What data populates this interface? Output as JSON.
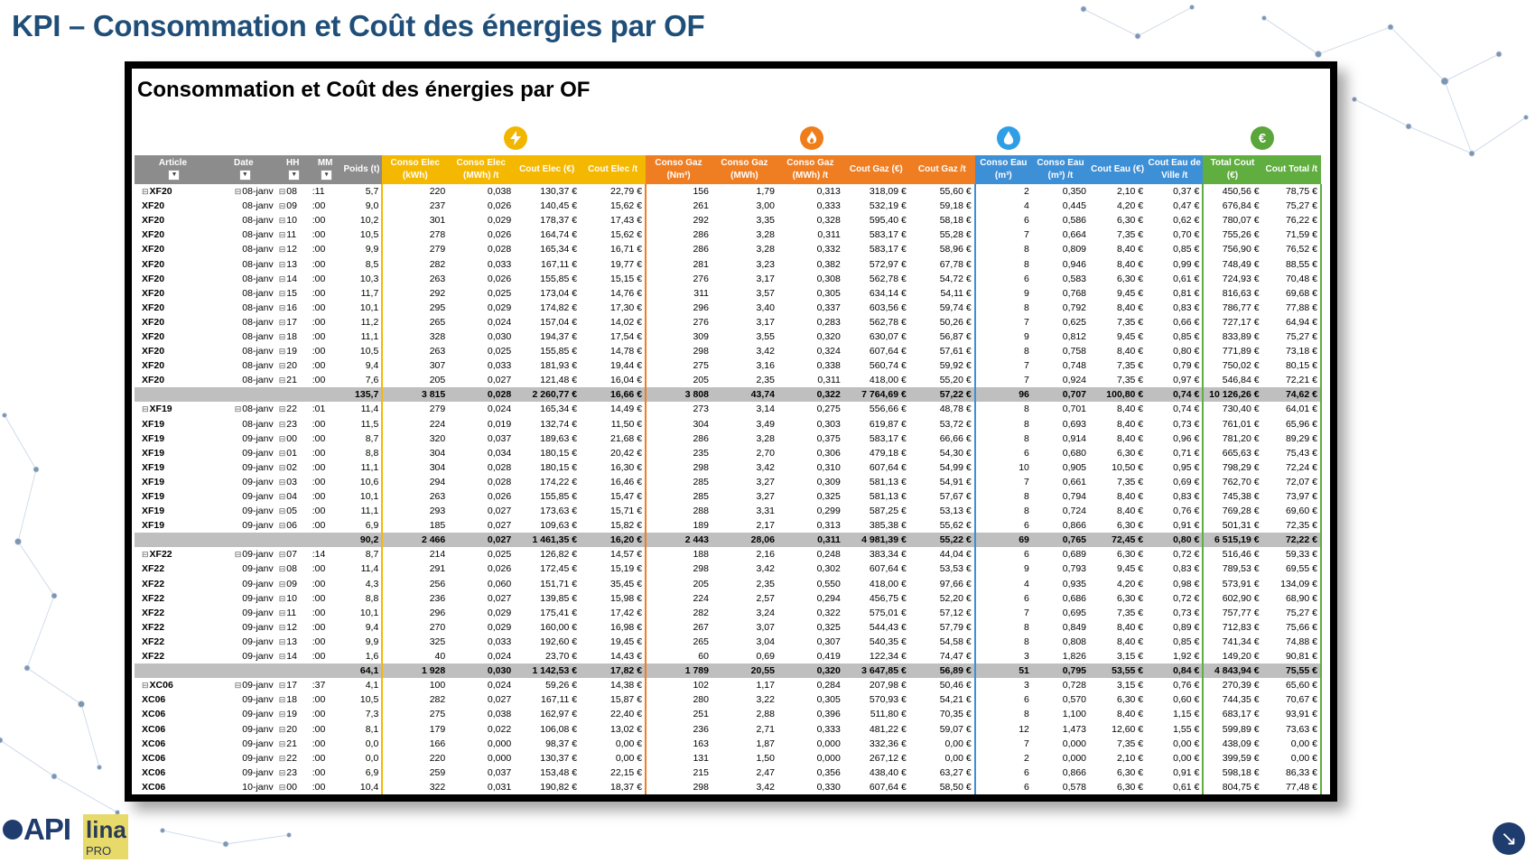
{
  "slide": {
    "title": "KPI – Consommation et Coût des énergies par OF"
  },
  "sheet": {
    "title": "Consommation et Coût des énergies par OF",
    "icons": [
      "lightning-icon",
      "flame-icon",
      "water-drop-icon",
      "euro-icon"
    ],
    "headers": {
      "article": "Article",
      "date": "Date",
      "hh": "HH",
      "mm": "MM",
      "poids": "Poids (t)",
      "conso_elec_kwh": "Conso Elec (kWh)",
      "conso_elec_mwh_t": "Conso Elec (MWh) /t",
      "cout_elec": "Cout Elec (€)",
      "cout_elec_t": "Cout Elec /t",
      "conso_gaz_nm3": "Conso Gaz (Nm³)",
      "conso_gaz_mwh": "Conso Gaz (MWh)",
      "conso_gaz_mwh_t": "Conso Gaz (MWh) /t",
      "cout_gaz": "Cout Gaz (€)",
      "cout_gaz_t": "Cout Gaz /t",
      "conso_eau_m3": "Conso Eau (m³)",
      "conso_eau_m3_t": "Conso Eau (m³) /t",
      "cout_eau": "Cout Eau (€)",
      "cout_eau_ville_t": "Cout Eau de Ville /t",
      "total_cout": "Total Cout (€)",
      "cout_total_t": "Cout Total /t"
    },
    "filter_glyphs": {
      "dropdown": "▼",
      "sorted": "▾"
    },
    "rows": [
      {
        "t": "first",
        "c": [
          "XF20",
          "08-janv",
          "08",
          ":11",
          "5,7",
          "220",
          "0,038",
          "130,37 €",
          "22,79 €",
          "156",
          "1,79",
          "0,313",
          "318,09 €",
          "55,60 €",
          "2",
          "0,350",
          "2,10 €",
          "0,37 €",
          "450,56 €",
          "78,75 €"
        ]
      },
      {
        "t": "row",
        "c": [
          "XF20",
          "08-janv",
          "09",
          ":00",
          "9,0",
          "237",
          "0,026",
          "140,45 €",
          "15,62 €",
          "261",
          "3,00",
          "0,333",
          "532,19 €",
          "59,18 €",
          "4",
          "0,445",
          "4,20 €",
          "0,47 €",
          "676,84 €",
          "75,27 €"
        ]
      },
      {
        "t": "row",
        "c": [
          "XF20",
          "08-janv",
          "10",
          ":00",
          "10,2",
          "301",
          "0,029",
          "178,37 €",
          "17,43 €",
          "292",
          "3,35",
          "0,328",
          "595,40 €",
          "58,18 €",
          "6",
          "0,586",
          "6,30 €",
          "0,62 €",
          "780,07 €",
          "76,22 €"
        ]
      },
      {
        "t": "row",
        "c": [
          "XF20",
          "08-janv",
          "11",
          ":00",
          "10,5",
          "278",
          "0,026",
          "164,74 €",
          "15,62 €",
          "286",
          "3,28",
          "0,311",
          "583,17 €",
          "55,28 €",
          "7",
          "0,664",
          "7,35 €",
          "0,70 €",
          "755,26 €",
          "71,59 €"
        ]
      },
      {
        "t": "row",
        "c": [
          "XF20",
          "08-janv",
          "12",
          ":00",
          "9,9",
          "279",
          "0,028",
          "165,34 €",
          "16,71 €",
          "286",
          "3,28",
          "0,332",
          "583,17 €",
          "58,96 €",
          "8",
          "0,809",
          "8,40 €",
          "0,85 €",
          "756,90 €",
          "76,52 €"
        ]
      },
      {
        "t": "row",
        "c": [
          "XF20",
          "08-janv",
          "13",
          ":00",
          "8,5",
          "282",
          "0,033",
          "167,11 €",
          "19,77 €",
          "281",
          "3,23",
          "0,382",
          "572,97 €",
          "67,78 €",
          "8",
          "0,946",
          "8,40 €",
          "0,99 €",
          "748,49 €",
          "88,55 €"
        ]
      },
      {
        "t": "row",
        "c": [
          "XF20",
          "08-janv",
          "14",
          ":00",
          "10,3",
          "263",
          "0,026",
          "155,85 €",
          "15,15 €",
          "276",
          "3,17",
          "0,308",
          "562,78 €",
          "54,72 €",
          "6",
          "0,583",
          "6,30 €",
          "0,61 €",
          "724,93 €",
          "70,48 €"
        ]
      },
      {
        "t": "row",
        "c": [
          "XF20",
          "08-janv",
          "15",
          ":00",
          "11,7",
          "292",
          "0,025",
          "173,04 €",
          "14,76 €",
          "311",
          "3,57",
          "0,305",
          "634,14 €",
          "54,11 €",
          "9",
          "0,768",
          "9,45 €",
          "0,81 €",
          "816,63 €",
          "69,68 €"
        ]
      },
      {
        "t": "row",
        "c": [
          "XF20",
          "08-janv",
          "16",
          ":00",
          "10,1",
          "295",
          "0,029",
          "174,82 €",
          "17,30 €",
          "296",
          "3,40",
          "0,337",
          "603,56 €",
          "59,74 €",
          "8",
          "0,792",
          "8,40 €",
          "0,83 €",
          "786,77 €",
          "77,88 €"
        ]
      },
      {
        "t": "row",
        "c": [
          "XF20",
          "08-janv",
          "17",
          ":00",
          "11,2",
          "265",
          "0,024",
          "157,04 €",
          "14,02 €",
          "276",
          "3,17",
          "0,283",
          "562,78 €",
          "50,26 €",
          "7",
          "0,625",
          "7,35 €",
          "0,66 €",
          "727,17 €",
          "64,94 €"
        ]
      },
      {
        "t": "row",
        "c": [
          "XF20",
          "08-janv",
          "18",
          ":00",
          "11,1",
          "328",
          "0,030",
          "194,37 €",
          "17,54 €",
          "309",
          "3,55",
          "0,320",
          "630,07 €",
          "56,87 €",
          "9",
          "0,812",
          "9,45 €",
          "0,85 €",
          "833,89 €",
          "75,27 €"
        ]
      },
      {
        "t": "row",
        "c": [
          "XF20",
          "08-janv",
          "19",
          ":00",
          "10,5",
          "263",
          "0,025",
          "155,85 €",
          "14,78 €",
          "298",
          "3,42",
          "0,324",
          "607,64 €",
          "57,61 €",
          "8",
          "0,758",
          "8,40 €",
          "0,80 €",
          "771,89 €",
          "73,18 €"
        ]
      },
      {
        "t": "row",
        "c": [
          "XF20",
          "08-janv",
          "20",
          ":00",
          "9,4",
          "307",
          "0,033",
          "181,93 €",
          "19,44 €",
          "275",
          "3,16",
          "0,338",
          "560,74 €",
          "59,92 €",
          "7",
          "0,748",
          "7,35 €",
          "0,79 €",
          "750,02 €",
          "80,15 €"
        ]
      },
      {
        "t": "row",
        "c": [
          "XF20",
          "08-janv",
          "21",
          ":00",
          "7,6",
          "205",
          "0,027",
          "121,48 €",
          "16,04 €",
          "205",
          "2,35",
          "0,311",
          "418,00 €",
          "55,20 €",
          "7",
          "0,924",
          "7,35 €",
          "0,97 €",
          "546,84 €",
          "72,21 €"
        ]
      },
      {
        "t": "subtotal",
        "c": [
          "",
          "",
          "",
          "",
          "135,7",
          "3 815",
          "0,028",
          "2 260,77 €",
          "16,66 €",
          "3 808",
          "43,74",
          "0,322",
          "7 764,69 €",
          "57,22 €",
          "96",
          "0,707",
          "100,80 €",
          "0,74 €",
          "10 126,26 €",
          "74,62 €"
        ]
      },
      {
        "t": "first",
        "c": [
          "XF19",
          "08-janv",
          "22",
          ":01",
          "11,4",
          "279",
          "0,024",
          "165,34 €",
          "14,49 €",
          "273",
          "3,14",
          "0,275",
          "556,66 €",
          "48,78 €",
          "8",
          "0,701",
          "8,40 €",
          "0,74 €",
          "730,40 €",
          "64,01 €"
        ]
      },
      {
        "t": "row",
        "c": [
          "XF19",
          "08-janv",
          "23",
          ":00",
          "11,5",
          "224",
          "0,019",
          "132,74 €",
          "11,50 €",
          "304",
          "3,49",
          "0,303",
          "619,87 €",
          "53,72 €",
          "8",
          "0,693",
          "8,40 €",
          "0,73 €",
          "761,01 €",
          "65,96 €"
        ]
      },
      {
        "t": "rowd",
        "c": [
          "XF19",
          "09-janv",
          "00",
          ":00",
          "8,7",
          "320",
          "0,037",
          "189,63 €",
          "21,68 €",
          "286",
          "3,28",
          "0,375",
          "583,17 €",
          "66,66 €",
          "8",
          "0,914",
          "8,40 €",
          "0,96 €",
          "781,20 €",
          "89,29 €"
        ]
      },
      {
        "t": "row",
        "c": [
          "XF19",
          "09-janv",
          "01",
          ":00",
          "8,8",
          "304",
          "0,034",
          "180,15 €",
          "20,42 €",
          "235",
          "2,70",
          "0,306",
          "479,18 €",
          "54,30 €",
          "6",
          "0,680",
          "6,30 €",
          "0,71 €",
          "665,63 €",
          "75,43 €"
        ]
      },
      {
        "t": "row",
        "c": [
          "XF19",
          "09-janv",
          "02",
          ":00",
          "11,1",
          "304",
          "0,028",
          "180,15 €",
          "16,30 €",
          "298",
          "3,42",
          "0,310",
          "607,64 €",
          "54,99 €",
          "10",
          "0,905",
          "10,50 €",
          "0,95 €",
          "798,29 €",
          "72,24 €"
        ]
      },
      {
        "t": "row",
        "c": [
          "XF19",
          "09-janv",
          "03",
          ":00",
          "10,6",
          "294",
          "0,028",
          "174,22 €",
          "16,46 €",
          "285",
          "3,27",
          "0,309",
          "581,13 €",
          "54,91 €",
          "7",
          "0,661",
          "7,35 €",
          "0,69 €",
          "762,70 €",
          "72,07 €"
        ]
      },
      {
        "t": "row",
        "c": [
          "XF19",
          "09-janv",
          "04",
          ":00",
          "10,1",
          "263",
          "0,026",
          "155,85 €",
          "15,47 €",
          "285",
          "3,27",
          "0,325",
          "581,13 €",
          "57,67 €",
          "8",
          "0,794",
          "8,40 €",
          "0,83 €",
          "745,38 €",
          "73,97 €"
        ]
      },
      {
        "t": "row",
        "c": [
          "XF19",
          "09-janv",
          "05",
          ":00",
          "11,1",
          "293",
          "0,027",
          "173,63 €",
          "15,71 €",
          "288",
          "3,31",
          "0,299",
          "587,25 €",
          "53,13 €",
          "8",
          "0,724",
          "8,40 €",
          "0,76 €",
          "769,28 €",
          "69,60 €"
        ]
      },
      {
        "t": "row",
        "c": [
          "XF19",
          "09-janv",
          "06",
          ":00",
          "6,9",
          "185",
          "0,027",
          "109,63 €",
          "15,82 €",
          "189",
          "2,17",
          "0,313",
          "385,38 €",
          "55,62 €",
          "6",
          "0,866",
          "6,30 €",
          "0,91 €",
          "501,31 €",
          "72,35 €"
        ]
      },
      {
        "t": "subtotal",
        "c": [
          "",
          "",
          "",
          "",
          "90,2",
          "2 466",
          "0,027",
          "1 461,35 €",
          "16,20 €",
          "2 443",
          "28,06",
          "0,311",
          "4 981,39 €",
          "55,22 €",
          "69",
          "0,765",
          "72,45 €",
          "0,80 €",
          "6 515,19 €",
          "72,22 €"
        ]
      },
      {
        "t": "first",
        "c": [
          "XF22",
          "09-janv",
          "07",
          ":14",
          "8,7",
          "214",
          "0,025",
          "126,82 €",
          "14,57 €",
          "188",
          "2,16",
          "0,248",
          "383,34 €",
          "44,04 €",
          "6",
          "0,689",
          "6,30 €",
          "0,72 €",
          "516,46 €",
          "59,33 €"
        ]
      },
      {
        "t": "row",
        "c": [
          "XF22",
          "09-janv",
          "08",
          ":00",
          "11,4",
          "291",
          "0,026",
          "172,45 €",
          "15,19 €",
          "298",
          "3,42",
          "0,302",
          "607,64 €",
          "53,53 €",
          "9",
          "0,793",
          "9,45 €",
          "0,83 €",
          "789,53 €",
          "69,55 €"
        ]
      },
      {
        "t": "row",
        "c": [
          "XF22",
          "09-janv",
          "09",
          ":00",
          "4,3",
          "256",
          "0,060",
          "151,71 €",
          "35,45 €",
          "205",
          "2,35",
          "0,550",
          "418,00 €",
          "97,66 €",
          "4",
          "0,935",
          "4,20 €",
          "0,98 €",
          "573,91 €",
          "134,09 €"
        ]
      },
      {
        "t": "row",
        "c": [
          "XF22",
          "09-janv",
          "10",
          ":00",
          "8,8",
          "236",
          "0,027",
          "139,85 €",
          "15,98 €",
          "224",
          "2,57",
          "0,294",
          "456,75 €",
          "52,20 €",
          "6",
          "0,686",
          "6,30 €",
          "0,72 €",
          "602,90 €",
          "68,90 €"
        ]
      },
      {
        "t": "row",
        "c": [
          "XF22",
          "09-janv",
          "11",
          ":00",
          "10,1",
          "296",
          "0,029",
          "175,41 €",
          "17,42 €",
          "282",
          "3,24",
          "0,322",
          "575,01 €",
          "57,12 €",
          "7",
          "0,695",
          "7,35 €",
          "0,73 €",
          "757,77 €",
          "75,27 €"
        ]
      },
      {
        "t": "row",
        "c": [
          "XF22",
          "09-janv",
          "12",
          ":00",
          "9,4",
          "270",
          "0,029",
          "160,00 €",
          "16,98 €",
          "267",
          "3,07",
          "0,325",
          "544,43 €",
          "57,79 €",
          "8",
          "0,849",
          "8,40 €",
          "0,89 €",
          "712,83 €",
          "75,66 €"
        ]
      },
      {
        "t": "row",
        "c": [
          "XF22",
          "09-janv",
          "13",
          ":00",
          "9,9",
          "325",
          "0,033",
          "192,60 €",
          "19,45 €",
          "265",
          "3,04",
          "0,307",
          "540,35 €",
          "54,58 €",
          "8",
          "0,808",
          "8,40 €",
          "0,85 €",
          "741,34 €",
          "74,88 €"
        ]
      },
      {
        "t": "row",
        "c": [
          "XF22",
          "09-janv",
          "14",
          ":00",
          "1,6",
          "40",
          "0,024",
          "23,70 €",
          "14,43 €",
          "60",
          "0,69",
          "0,419",
          "122,34 €",
          "74,47 €",
          "3",
          "1,826",
          "3,15 €",
          "1,92 €",
          "149,20 €",
          "90,81 €"
        ]
      },
      {
        "t": "subtotal",
        "c": [
          "",
          "",
          "",
          "",
          "64,1",
          "1 928",
          "0,030",
          "1 142,53 €",
          "17,82 €",
          "1 789",
          "20,55",
          "0,320",
          "3 647,85 €",
          "56,89 €",
          "51",
          "0,795",
          "53,55 €",
          "0,84 €",
          "4 843,94 €",
          "75,55 €"
        ]
      },
      {
        "t": "first",
        "c": [
          "XC06",
          "09-janv",
          "17",
          ":37",
          "4,1",
          "100",
          "0,024",
          "59,26 €",
          "14,38 €",
          "102",
          "1,17",
          "0,284",
          "207,98 €",
          "50,46 €",
          "3",
          "0,728",
          "3,15 €",
          "0,76 €",
          "270,39 €",
          "65,60 €"
        ]
      },
      {
        "t": "row",
        "c": [
          "XC06",
          "09-janv",
          "18",
          ":00",
          "10,5",
          "282",
          "0,027",
          "167,11 €",
          "15,87 €",
          "280",
          "3,22",
          "0,305",
          "570,93 €",
          "54,21 €",
          "6",
          "0,570",
          "6,30 €",
          "0,60 €",
          "744,35 €",
          "70,67 €"
        ]
      },
      {
        "t": "row",
        "c": [
          "XC06",
          "09-janv",
          "19",
          ":00",
          "7,3",
          "275",
          "0,038",
          "162,97 €",
          "22,40 €",
          "251",
          "2,88",
          "0,396",
          "511,80 €",
          "70,35 €",
          "8",
          "1,100",
          "8,40 €",
          "1,15 €",
          "683,17 €",
          "93,91 €"
        ]
      },
      {
        "t": "row",
        "c": [
          "XC06",
          "09-janv",
          "20",
          ":00",
          "8,1",
          "179",
          "0,022",
          "106,08 €",
          "13,02 €",
          "236",
          "2,71",
          "0,333",
          "481,22 €",
          "59,07 €",
          "12",
          "1,473",
          "12,60 €",
          "1,55 €",
          "599,89 €",
          "73,63 €"
        ]
      },
      {
        "t": "row",
        "c": [
          "XC06",
          "09-janv",
          "21",
          ":00",
          "0,0",
          "166",
          "0,000",
          "98,37 €",
          "0,00 €",
          "163",
          "1,87",
          "0,000",
          "332,36 €",
          "0,00 €",
          "7",
          "0,000",
          "7,35 €",
          "0,00 €",
          "438,09 €",
          "0,00 €"
        ]
      },
      {
        "t": "row",
        "c": [
          "XC06",
          "09-janv",
          "22",
          ":00",
          "0,0",
          "220",
          "0,000",
          "130,37 €",
          "0,00 €",
          "131",
          "1,50",
          "0,000",
          "267,12 €",
          "0,00 €",
          "2",
          "0,000",
          "2,10 €",
          "0,00 €",
          "399,59 €",
          "0,00 €"
        ]
      },
      {
        "t": "row",
        "c": [
          "XC06",
          "09-janv",
          "23",
          ":00",
          "6,9",
          "259",
          "0,037",
          "153,48 €",
          "22,15 €",
          "215",
          "2,47",
          "0,356",
          "438,40 €",
          "63,27 €",
          "6",
          "0,866",
          "6,30 €",
          "0,91 €",
          "598,18 €",
          "86,33 €"
        ]
      },
      {
        "t": "rowd",
        "c": [
          "XC06",
          "10-janv",
          "00",
          ":00",
          "10,4",
          "322",
          "0,031",
          "190,82 €",
          "18,37 €",
          "298",
          "3,42",
          "0,330",
          "607,64 €",
          "58,50 €",
          "6",
          "0,578",
          "6,30 €",
          "0,61 €",
          "804,75 €",
          "77,48 €"
        ]
      }
    ]
  },
  "branding": {
    "logo_api": "API",
    "logo_lina": "lina",
    "logo_pro": "PRO"
  },
  "nav": {
    "next_glyph": "↘"
  }
}
